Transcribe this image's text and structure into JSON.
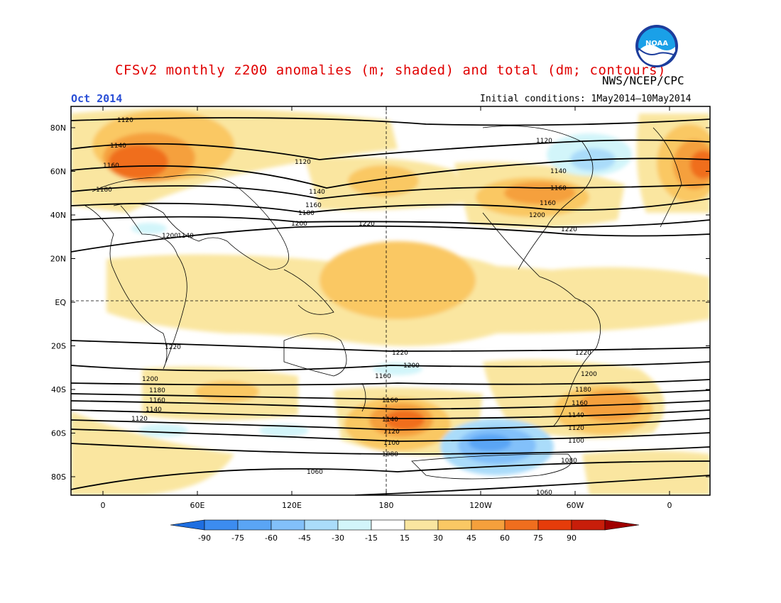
{
  "header": {
    "title": "CFSv2 monthly z200 anomalies (m; shaded) and total (dm; contours)",
    "agency": "NWS/NCEP/CPC",
    "month": "Oct 2014",
    "initial_conditions": "Initial conditions: 1May2014—10May2014",
    "logo_text": "NOAA"
  },
  "axes": {
    "lat_ticks": [
      "80N",
      "60N",
      "40N",
      "20N",
      "EQ",
      "20S",
      "40S",
      "60S",
      "80S"
    ],
    "lon_ticks": [
      "0",
      "60E",
      "120E",
      "180",
      "120W",
      "60W",
      "0"
    ]
  },
  "colorbar": {
    "labels": [
      "-90",
      "-75",
      "-60",
      "-45",
      "-30",
      "-15",
      "15",
      "30",
      "45",
      "60",
      "75",
      "90"
    ],
    "colors": [
      "#1e6ee0",
      "#3c8cf0",
      "#5aa5f5",
      "#82c0fa",
      "#aadcfa",
      "#d2f5fa",
      "#ffffff",
      "#fae6a0",
      "#fac864",
      "#f5a03c",
      "#f06e1e",
      "#e63c0a",
      "#c81e0a",
      "#a00000"
    ]
  },
  "contour_labels": {
    "nh": [
      "1120",
      "1140",
      "1160",
      "1180",
      "1120",
      "1140",
      "1160",
      "1200",
      "1220",
      "1120",
      "1140",
      "1160",
      "1180",
      "1200",
      "1220",
      "1160",
      "1140",
      "1200"
    ],
    "sh": [
      "1220",
      "1200",
      "1180",
      "1160",
      "1140",
      "1120",
      "1220",
      "1200",
      "1160",
      "1160",
      "1140",
      "1120",
      "1100",
      "1080",
      "1060",
      "1220",
      "1200",
      "1180",
      "1160",
      "1140",
      "1120",
      "1100",
      "1080",
      "1060"
    ]
  }
}
